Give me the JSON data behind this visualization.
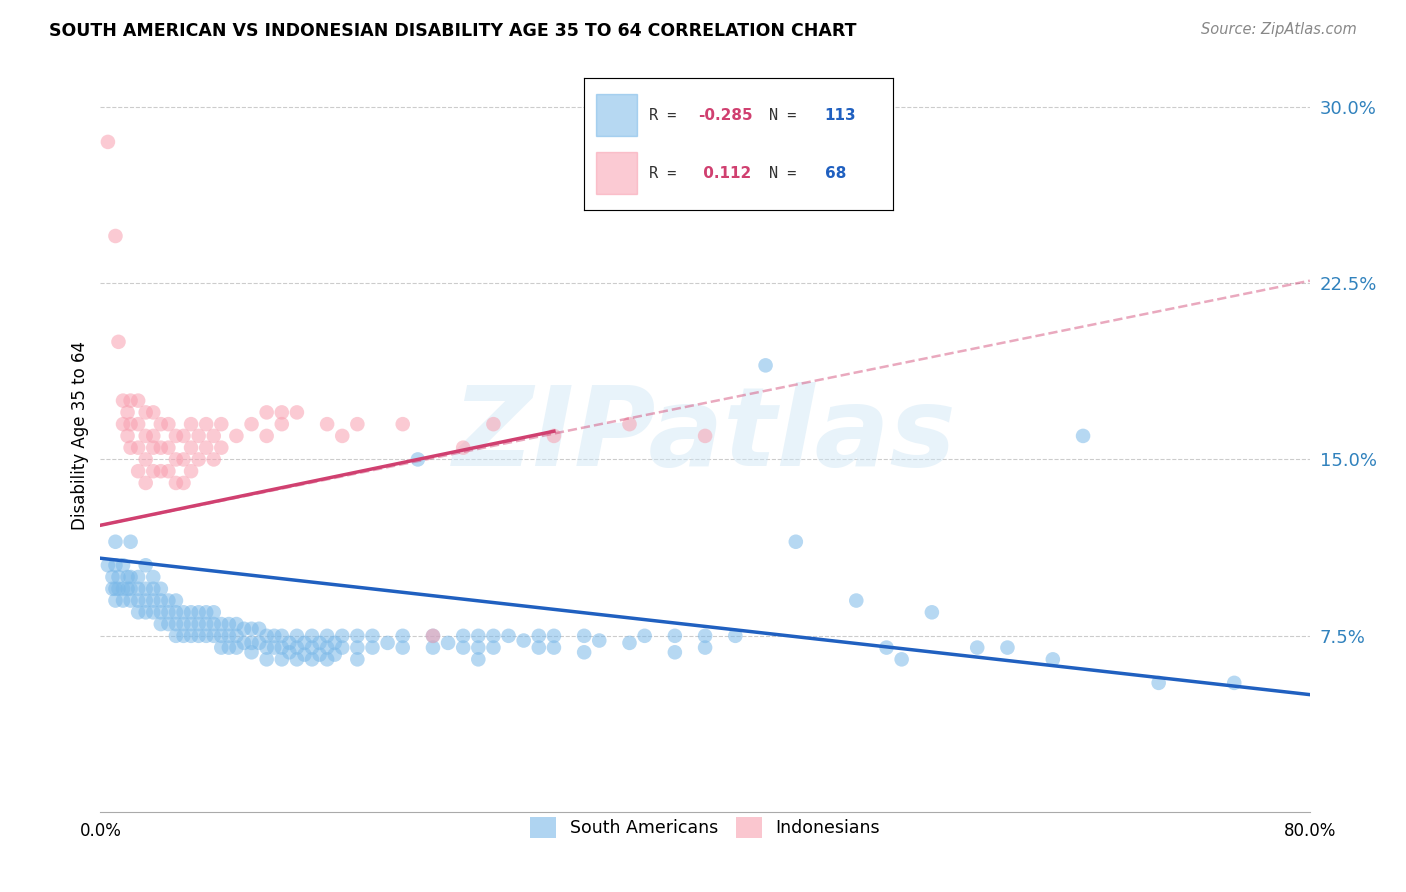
{
  "title": "SOUTH AMERICAN VS INDONESIAN DISABILITY AGE 35 TO 64 CORRELATION CHART",
  "source": "Source: ZipAtlas.com",
  "ylabel": "Disability Age 35 to 64",
  "yticks": [
    "7.5%",
    "15.0%",
    "22.5%",
    "30.0%"
  ],
  "ytick_vals": [
    0.075,
    0.15,
    0.225,
    0.3
  ],
  "xlim": [
    0.0,
    0.8
  ],
  "ylim": [
    0.0,
    0.32
  ],
  "bottom_legend_blue": "South Americans",
  "bottom_legend_pink": "Indonesians",
  "blue_color": "#7ab8e8",
  "pink_color": "#f8a0b0",
  "blue_line_color": "#2060c0",
  "pink_line_color": "#d04070",
  "watermark": "ZIPatlas",
  "blue_scatter": [
    [
      0.005,
      0.105
    ],
    [
      0.008,
      0.1
    ],
    [
      0.008,
      0.095
    ],
    [
      0.01,
      0.115
    ],
    [
      0.01,
      0.105
    ],
    [
      0.01,
      0.095
    ],
    [
      0.01,
      0.09
    ],
    [
      0.012,
      0.1
    ],
    [
      0.012,
      0.095
    ],
    [
      0.015,
      0.105
    ],
    [
      0.015,
      0.095
    ],
    [
      0.015,
      0.09
    ],
    [
      0.018,
      0.1
    ],
    [
      0.018,
      0.095
    ],
    [
      0.02,
      0.115
    ],
    [
      0.02,
      0.1
    ],
    [
      0.02,
      0.095
    ],
    [
      0.02,
      0.09
    ],
    [
      0.025,
      0.1
    ],
    [
      0.025,
      0.095
    ],
    [
      0.025,
      0.09
    ],
    [
      0.025,
      0.085
    ],
    [
      0.03,
      0.105
    ],
    [
      0.03,
      0.095
    ],
    [
      0.03,
      0.09
    ],
    [
      0.03,
      0.085
    ],
    [
      0.035,
      0.1
    ],
    [
      0.035,
      0.095
    ],
    [
      0.035,
      0.09
    ],
    [
      0.035,
      0.085
    ],
    [
      0.04,
      0.095
    ],
    [
      0.04,
      0.09
    ],
    [
      0.04,
      0.085
    ],
    [
      0.04,
      0.08
    ],
    [
      0.045,
      0.09
    ],
    [
      0.045,
      0.085
    ],
    [
      0.045,
      0.08
    ],
    [
      0.05,
      0.09
    ],
    [
      0.05,
      0.085
    ],
    [
      0.05,
      0.08
    ],
    [
      0.05,
      0.075
    ],
    [
      0.055,
      0.085
    ],
    [
      0.055,
      0.08
    ],
    [
      0.055,
      0.075
    ],
    [
      0.06,
      0.085
    ],
    [
      0.06,
      0.08
    ],
    [
      0.06,
      0.075
    ],
    [
      0.065,
      0.085
    ],
    [
      0.065,
      0.08
    ],
    [
      0.065,
      0.075
    ],
    [
      0.07,
      0.085
    ],
    [
      0.07,
      0.08
    ],
    [
      0.07,
      0.075
    ],
    [
      0.075,
      0.085
    ],
    [
      0.075,
      0.08
    ],
    [
      0.075,
      0.075
    ],
    [
      0.08,
      0.08
    ],
    [
      0.08,
      0.075
    ],
    [
      0.08,
      0.07
    ],
    [
      0.085,
      0.08
    ],
    [
      0.085,
      0.075
    ],
    [
      0.085,
      0.07
    ],
    [
      0.09,
      0.08
    ],
    [
      0.09,
      0.075
    ],
    [
      0.09,
      0.07
    ],
    [
      0.095,
      0.078
    ],
    [
      0.095,
      0.072
    ],
    [
      0.1,
      0.078
    ],
    [
      0.1,
      0.072
    ],
    [
      0.1,
      0.068
    ],
    [
      0.105,
      0.078
    ],
    [
      0.105,
      0.072
    ],
    [
      0.11,
      0.075
    ],
    [
      0.11,
      0.07
    ],
    [
      0.11,
      0.065
    ],
    [
      0.115,
      0.075
    ],
    [
      0.115,
      0.07
    ],
    [
      0.12,
      0.075
    ],
    [
      0.12,
      0.07
    ],
    [
      0.12,
      0.065
    ],
    [
      0.125,
      0.072
    ],
    [
      0.125,
      0.068
    ],
    [
      0.13,
      0.075
    ],
    [
      0.13,
      0.07
    ],
    [
      0.13,
      0.065
    ],
    [
      0.135,
      0.072
    ],
    [
      0.135,
      0.067
    ],
    [
      0.14,
      0.075
    ],
    [
      0.14,
      0.07
    ],
    [
      0.14,
      0.065
    ],
    [
      0.145,
      0.072
    ],
    [
      0.145,
      0.067
    ],
    [
      0.15,
      0.075
    ],
    [
      0.15,
      0.07
    ],
    [
      0.15,
      0.065
    ],
    [
      0.155,
      0.072
    ],
    [
      0.155,
      0.067
    ],
    [
      0.16,
      0.075
    ],
    [
      0.16,
      0.07
    ],
    [
      0.17,
      0.075
    ],
    [
      0.17,
      0.07
    ],
    [
      0.17,
      0.065
    ],
    [
      0.18,
      0.075
    ],
    [
      0.18,
      0.07
    ],
    [
      0.19,
      0.072
    ],
    [
      0.2,
      0.075
    ],
    [
      0.2,
      0.07
    ],
    [
      0.21,
      0.15
    ],
    [
      0.22,
      0.075
    ],
    [
      0.22,
      0.07
    ],
    [
      0.23,
      0.072
    ],
    [
      0.24,
      0.075
    ],
    [
      0.24,
      0.07
    ],
    [
      0.25,
      0.075
    ],
    [
      0.25,
      0.07
    ],
    [
      0.25,
      0.065
    ],
    [
      0.26,
      0.075
    ],
    [
      0.26,
      0.07
    ],
    [
      0.27,
      0.075
    ],
    [
      0.28,
      0.073
    ],
    [
      0.29,
      0.075
    ],
    [
      0.29,
      0.07
    ],
    [
      0.3,
      0.075
    ],
    [
      0.3,
      0.07
    ],
    [
      0.32,
      0.075
    ],
    [
      0.32,
      0.068
    ],
    [
      0.33,
      0.073
    ],
    [
      0.35,
      0.072
    ],
    [
      0.36,
      0.075
    ],
    [
      0.38,
      0.075
    ],
    [
      0.38,
      0.068
    ],
    [
      0.4,
      0.075
    ],
    [
      0.4,
      0.07
    ],
    [
      0.42,
      0.075
    ],
    [
      0.44,
      0.19
    ],
    [
      0.46,
      0.115
    ],
    [
      0.5,
      0.09
    ],
    [
      0.52,
      0.07
    ],
    [
      0.53,
      0.065
    ],
    [
      0.55,
      0.085
    ],
    [
      0.58,
      0.07
    ],
    [
      0.6,
      0.07
    ],
    [
      0.63,
      0.065
    ],
    [
      0.65,
      0.16
    ],
    [
      0.7,
      0.055
    ],
    [
      0.75,
      0.055
    ]
  ],
  "pink_scatter": [
    [
      0.005,
      0.285
    ],
    [
      0.01,
      0.245
    ],
    [
      0.012,
      0.2
    ],
    [
      0.015,
      0.175
    ],
    [
      0.015,
      0.165
    ],
    [
      0.018,
      0.17
    ],
    [
      0.018,
      0.16
    ],
    [
      0.02,
      0.175
    ],
    [
      0.02,
      0.165
    ],
    [
      0.02,
      0.155
    ],
    [
      0.025,
      0.175
    ],
    [
      0.025,
      0.165
    ],
    [
      0.025,
      0.155
    ],
    [
      0.025,
      0.145
    ],
    [
      0.03,
      0.17
    ],
    [
      0.03,
      0.16
    ],
    [
      0.03,
      0.15
    ],
    [
      0.03,
      0.14
    ],
    [
      0.035,
      0.17
    ],
    [
      0.035,
      0.16
    ],
    [
      0.035,
      0.155
    ],
    [
      0.035,
      0.145
    ],
    [
      0.04,
      0.165
    ],
    [
      0.04,
      0.155
    ],
    [
      0.04,
      0.145
    ],
    [
      0.045,
      0.165
    ],
    [
      0.045,
      0.155
    ],
    [
      0.045,
      0.145
    ],
    [
      0.05,
      0.16
    ],
    [
      0.05,
      0.15
    ],
    [
      0.05,
      0.14
    ],
    [
      0.055,
      0.16
    ],
    [
      0.055,
      0.15
    ],
    [
      0.055,
      0.14
    ],
    [
      0.06,
      0.165
    ],
    [
      0.06,
      0.155
    ],
    [
      0.06,
      0.145
    ],
    [
      0.065,
      0.16
    ],
    [
      0.065,
      0.15
    ],
    [
      0.07,
      0.165
    ],
    [
      0.07,
      0.155
    ],
    [
      0.075,
      0.16
    ],
    [
      0.075,
      0.15
    ],
    [
      0.08,
      0.165
    ],
    [
      0.08,
      0.155
    ],
    [
      0.09,
      0.16
    ],
    [
      0.1,
      0.165
    ],
    [
      0.11,
      0.17
    ],
    [
      0.11,
      0.16
    ],
    [
      0.12,
      0.17
    ],
    [
      0.12,
      0.165
    ],
    [
      0.13,
      0.17
    ],
    [
      0.15,
      0.165
    ],
    [
      0.16,
      0.16
    ],
    [
      0.17,
      0.165
    ],
    [
      0.2,
      0.165
    ],
    [
      0.22,
      0.075
    ],
    [
      0.24,
      0.155
    ],
    [
      0.26,
      0.165
    ],
    [
      0.3,
      0.16
    ],
    [
      0.35,
      0.165
    ],
    [
      0.4,
      0.16
    ]
  ],
  "blue_regression": {
    "x_start": 0.0,
    "y_start": 0.108,
    "x_end": 0.8,
    "y_end": 0.05
  },
  "pink_regression_solid": {
    "x_start": 0.0,
    "y_start": 0.122,
    "x_end": 0.3,
    "y_end": 0.162
  },
  "pink_regression_dashed": {
    "x_start": 0.0,
    "y_start": 0.122,
    "x_end": 0.8,
    "y_end": 0.226
  }
}
